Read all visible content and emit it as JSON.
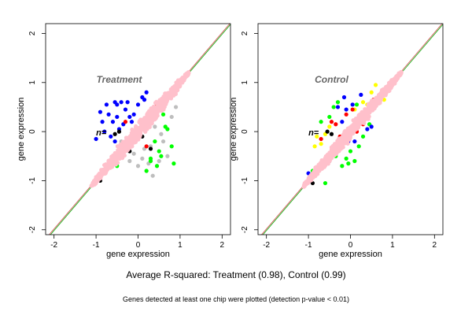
{
  "summary": "Average R-squared: Treatment (0.98), Control (0.99)",
  "footnote": "Genes detected at least one chip were plotted (detection p-value < 0.01)",
  "colors": {
    "pink": "#ffc0cb",
    "grey": "#bebebe",
    "green": "#00ff00",
    "blue": "#0000ff",
    "yellow": "#ffff00",
    "red": "#ff0000",
    "black": "#000000",
    "line": "#8b8b00"
  },
  "chart_data": [
    {
      "type": "scatter",
      "title": "Treatment",
      "xlabel": "gene expression",
      "ylabel": "gene expression",
      "xlim": [
        -2.2,
        2.2
      ],
      "ylim": [
        -2.1,
        2.2
      ],
      "xticks": [
        -2,
        -1,
        0,
        1,
        2
      ],
      "yticks": [
        -2,
        -1,
        0,
        1,
        2
      ],
      "annotation": "n=",
      "reference_line": "y = x",
      "series": [
        {
          "color": "pink",
          "cloud": {
            "x_min": -1.1,
            "x_max": 1.2,
            "spread": 0.12
          }
        },
        {
          "color": "grey",
          "points": [
            [
              -0.1,
              -0.45
            ],
            [
              0.1,
              -0.55
            ],
            [
              0.3,
              -0.3
            ],
            [
              0.5,
              -0.6
            ],
            [
              0.2,
              -0.8
            ],
            [
              0.6,
              -0.2
            ],
            [
              -0.2,
              -0.6
            ],
            [
              0.8,
              0.3
            ],
            [
              0.4,
              0.1
            ],
            [
              0.0,
              -0.7
            ],
            [
              -0.4,
              -0.2
            ],
            [
              0.7,
              -0.5
            ],
            [
              0.35,
              -0.9
            ],
            [
              0.15,
              -0.35
            ],
            [
              0.9,
              0.5
            ],
            [
              -0.6,
              -0.5
            ],
            [
              0.55,
              -0.05
            ],
            [
              0.25,
              -0.65
            ]
          ]
        },
        {
          "color": "green",
          "points": [
            [
              0.6,
              0.35
            ],
            [
              0.3,
              -0.6
            ],
            [
              0.5,
              -0.4
            ],
            [
              0.55,
              -0.5
            ],
            [
              0.45,
              -0.7
            ],
            [
              0.85,
              -0.65
            ],
            [
              0.2,
              -0.8
            ],
            [
              0.7,
              0.05
            ],
            [
              0.4,
              -0.2
            ],
            [
              0.65,
              0.1
            ],
            [
              0.3,
              -0.55
            ],
            [
              0.8,
              -0.3
            ],
            [
              -0.5,
              -0.7
            ]
          ]
        },
        {
          "color": "blue",
          "points": [
            [
              -0.9,
              0.4
            ],
            [
              -0.7,
              0.35
            ],
            [
              -0.5,
              0.55
            ],
            [
              -0.4,
              0.6
            ],
            [
              -0.6,
              0.2
            ],
            [
              -0.3,
              0.45
            ],
            [
              -0.8,
              0.0
            ],
            [
              -0.2,
              0.3
            ],
            [
              0.1,
              0.7
            ],
            [
              0.15,
              0.65
            ],
            [
              -0.5,
              0.3
            ],
            [
              -0.35,
              0.15
            ],
            [
              -0.75,
              0.55
            ],
            [
              -0.55,
              0.6
            ],
            [
              -1.0,
              -0.15
            ],
            [
              -0.65,
              -0.1
            ],
            [
              -0.25,
              0.6
            ],
            [
              0.0,
              0.55
            ],
            [
              -0.45,
              0.05
            ],
            [
              -0.15,
              0.2
            ],
            [
              0.2,
              0.8
            ],
            [
              -0.55,
              -0.2
            ],
            [
              -0.85,
              0.2
            ],
            [
              -0.1,
              0.35
            ]
          ]
        },
        {
          "color": "black",
          "points": [
            [
              -0.9,
              -0.95
            ],
            [
              -0.55,
              -0.05
            ],
            [
              -0.45,
              0.0
            ],
            [
              -0.9,
              -1.0
            ],
            [
              -0.2,
              -0.4
            ],
            [
              0.1,
              -0.1
            ],
            [
              -0.35,
              -0.25
            ],
            [
              0.3,
              -0.35
            ]
          ]
        },
        {
          "color": "red",
          "points": [
            [
              0.45,
              0.55
            ],
            [
              -0.3,
              0.2
            ],
            [
              0.2,
              -0.3
            ]
          ]
        }
      ]
    },
    {
      "type": "scatter",
      "title": "Control",
      "xlabel": "gene expression",
      "ylabel": "gene expression",
      "xlim": [
        -2.2,
        2.2
      ],
      "ylim": [
        -2.1,
        2.2
      ],
      "xticks": [
        -2,
        -1,
        0,
        1,
        2
      ],
      "yticks": [
        -2,
        -1,
        0,
        1,
        2
      ],
      "annotation": "n=",
      "reference_line": "y = x",
      "series": [
        {
          "color": "pink",
          "cloud": {
            "x_min": -1.1,
            "x_max": 1.2,
            "spread": 0.1
          }
        },
        {
          "color": "yellow",
          "points": [
            [
              0.5,
              0.8
            ],
            [
              0.6,
              0.95
            ],
            [
              0.8,
              0.65
            ],
            [
              -0.6,
              -0.05
            ],
            [
              -0.8,
              -0.1
            ],
            [
              0.3,
              0.6
            ],
            [
              0.7,
              0.7
            ],
            [
              -0.7,
              -0.25
            ],
            [
              0.9,
              0.85
            ],
            [
              -0.5,
              0.1
            ],
            [
              0.4,
              0.55
            ],
            [
              0.1,
              0.45
            ],
            [
              -0.85,
              -0.3
            ]
          ]
        },
        {
          "color": "green",
          "points": [
            [
              -0.4,
              0.5
            ],
            [
              -0.5,
              0.3
            ],
            [
              -0.1,
              -0.55
            ],
            [
              0.1,
              -0.6
            ],
            [
              0.4,
              0.4
            ],
            [
              -0.2,
              -0.7
            ],
            [
              0.2,
              -0.3
            ],
            [
              -0.7,
              0.2
            ],
            [
              0.15,
              0.55
            ],
            [
              -0.3,
              0.6
            ],
            [
              0.0,
              -0.4
            ],
            [
              -0.05,
              -0.65
            ],
            [
              -0.9,
              -0.8
            ],
            [
              -0.6,
              -1.05
            ],
            [
              0.45,
              0.15
            ],
            [
              0.3,
              -0.1
            ],
            [
              -0.35,
              -0.5
            ],
            [
              0.5,
              0.6
            ]
          ]
        },
        {
          "color": "red",
          "points": [
            [
              -0.35,
              0.15
            ],
            [
              -0.1,
              0.35
            ],
            [
              -0.25,
              -0.1
            ],
            [
              0.3,
              0.15
            ],
            [
              0.05,
              0.45
            ],
            [
              -0.7,
              -0.15
            ],
            [
              0.55,
              0.65
            ],
            [
              0.15,
              0.0
            ],
            [
              -0.45,
              0.2
            ]
          ]
        },
        {
          "color": "blue",
          "points": [
            [
              -0.1,
              0.45
            ],
            [
              0.05,
              0.55
            ],
            [
              0.25,
              0.75
            ],
            [
              -0.15,
              0.7
            ],
            [
              0.4,
              0.05
            ],
            [
              0.5,
              0.1
            ],
            [
              -1.0,
              -0.85
            ],
            [
              -0.3,
              0.5
            ],
            [
              -0.2,
              0.2
            ],
            [
              0.1,
              -0.2
            ],
            [
              0.35,
              0.45
            ],
            [
              0.2,
              0.3
            ],
            [
              -0.05,
              -0.2
            ]
          ]
        },
        {
          "color": "black",
          "points": [
            [
              -0.55,
              0.0
            ],
            [
              -0.45,
              -0.05
            ],
            [
              -0.3,
              -0.35
            ],
            [
              -0.9,
              -1.05
            ],
            [
              -0.5,
              -0.6
            ]
          ]
        }
      ]
    }
  ]
}
